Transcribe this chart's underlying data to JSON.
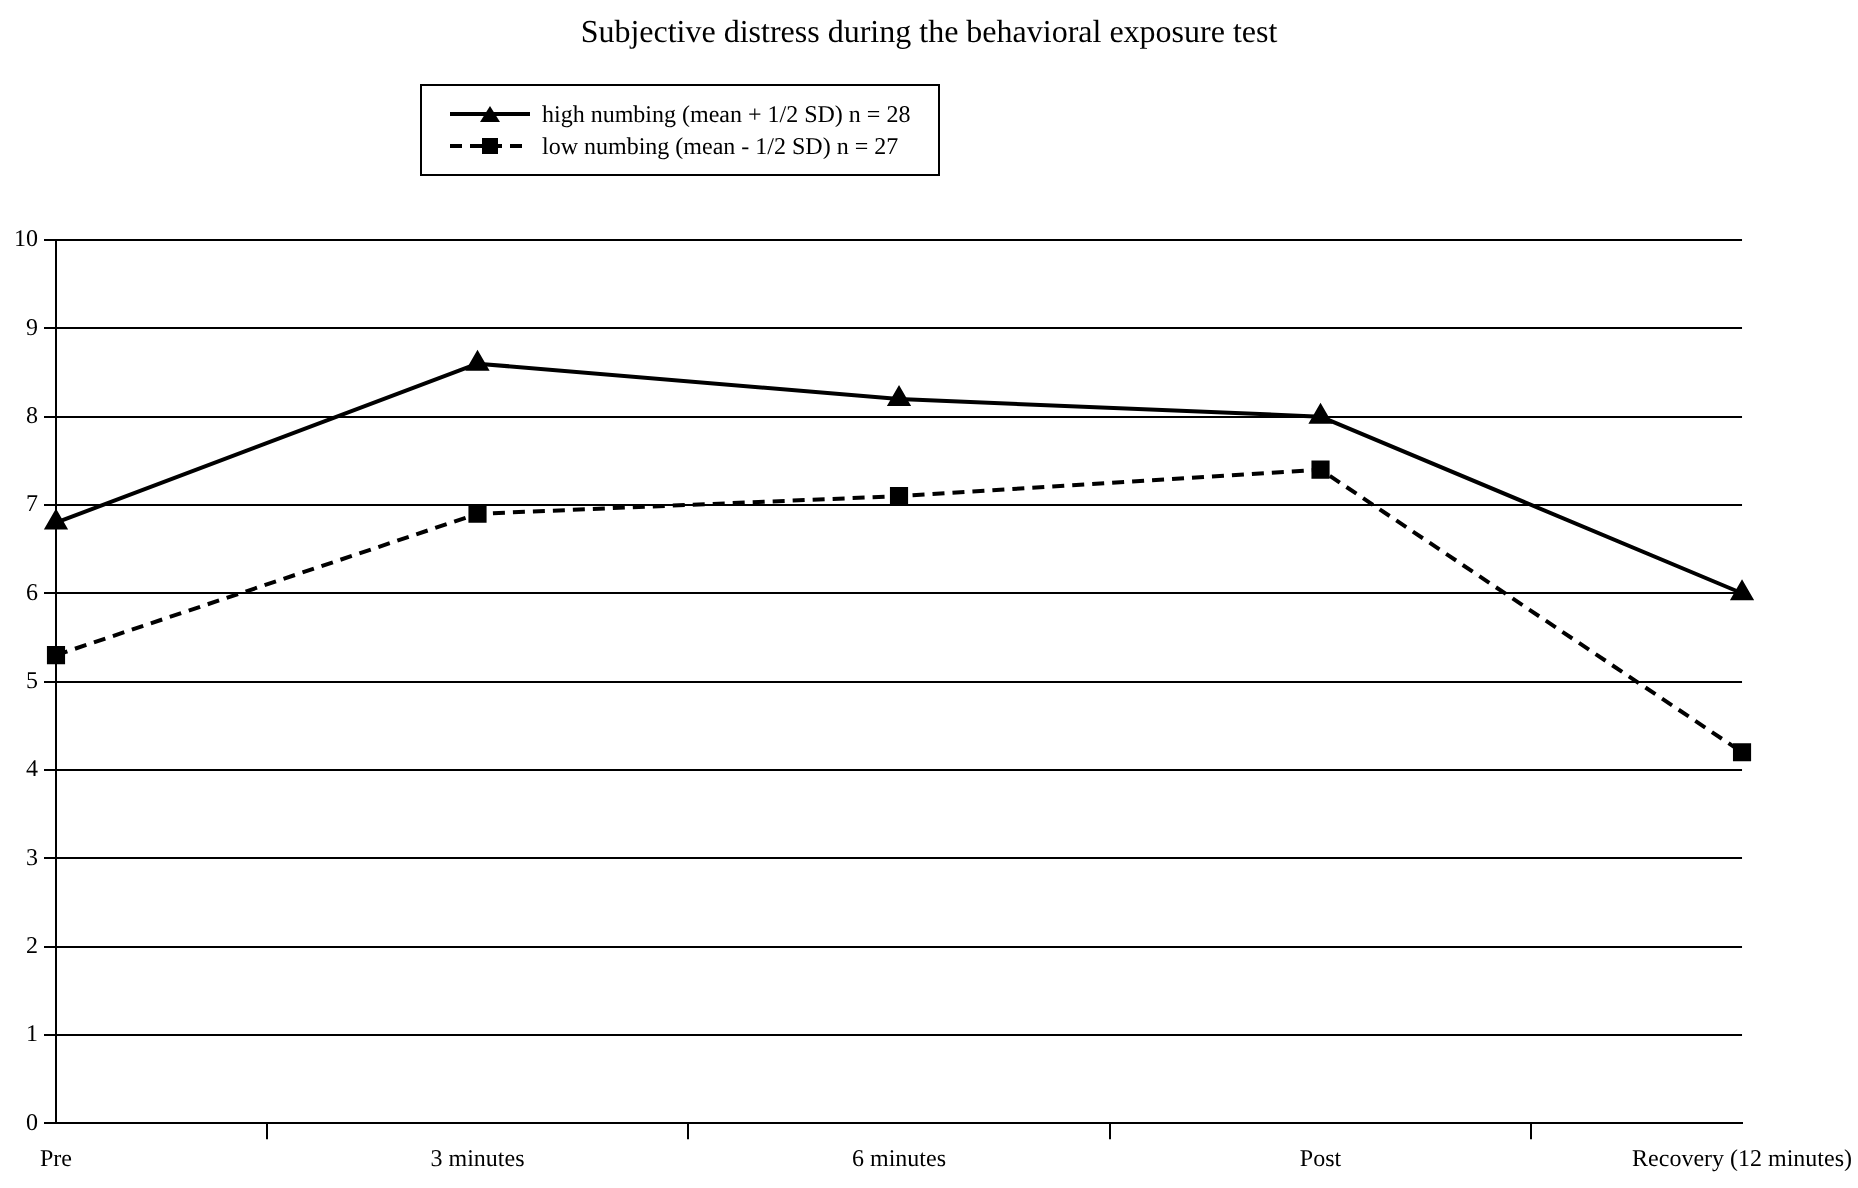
{
  "chart_data": {
    "type": "line",
    "title": "Subjective distress during the behavioral exposure test",
    "categories": [
      "Pre",
      "3 minutes",
      "6 minutes",
      "Post",
      "Recovery (12 minutes)"
    ],
    "series": [
      {
        "name": "high numbing (mean + 1/2 SD) n = 28",
        "color": "#000000",
        "values": [
          6.8,
          8.6,
          8.2,
          8.0,
          6.0
        ],
        "marker": "triangle",
        "line_style": "solid"
      },
      {
        "name": "low numbing (mean - 1/2 SD) n = 27",
        "color": "#000000",
        "values": [
          5.3,
          6.9,
          7.1,
          7.4,
          4.2
        ],
        "marker": "square",
        "line_style": "dashed"
      }
    ],
    "ylim": [
      0,
      10
    ],
    "yticks": [
      0,
      1,
      2,
      3,
      4,
      5,
      6,
      7,
      8,
      9,
      10
    ],
    "grid": "y",
    "legend": "top"
  }
}
